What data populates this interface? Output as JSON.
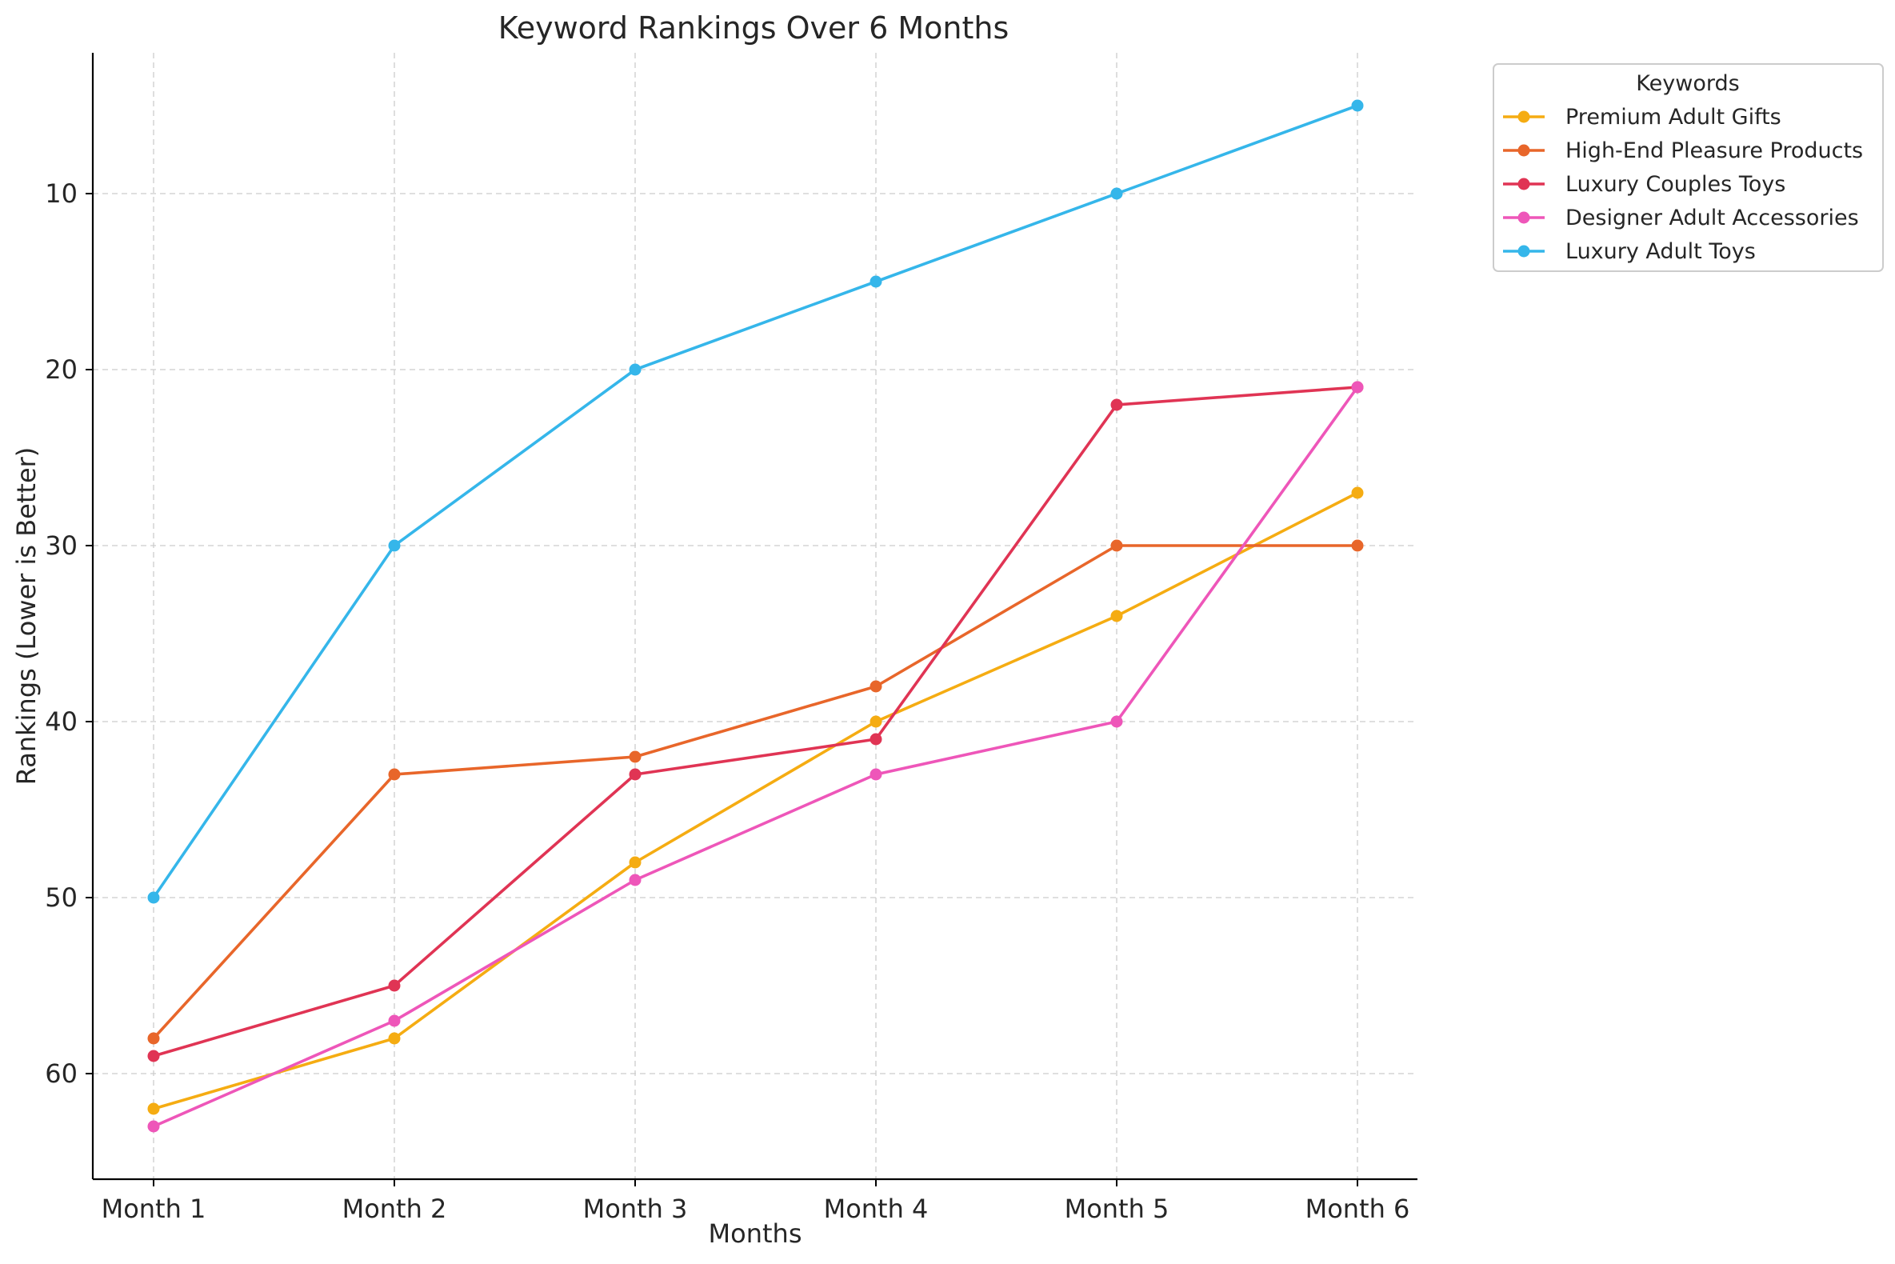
{
  "chart_data": {
    "type": "line",
    "title": "Keyword Rankings Over 6 Months",
    "xlabel": "Months",
    "ylabel": "Rankings (Lower is Better)",
    "categories": [
      "Month 1",
      "Month 2",
      "Month 3",
      "Month 4",
      "Month 5",
      "Month 6"
    ],
    "y_inverted": true,
    "ylim": [
      66,
      2
    ],
    "yticks": [
      10,
      20,
      30,
      40,
      50,
      60
    ],
    "grid": true,
    "legend": {
      "title": "Keywords",
      "placement": "outside-top-right"
    },
    "series": [
      {
        "name": "Premium Adult Gifts",
        "color": "#F5AC12",
        "values": [
          62,
          58,
          48,
          40,
          34,
          27
        ]
      },
      {
        "name": "High-End Pleasure Products",
        "color": "#E8662A",
        "values": [
          58,
          43,
          42,
          38,
          30,
          30
        ]
      },
      {
        "name": "Luxury Couples Toys",
        "color": "#E03454",
        "values": [
          59,
          55,
          43,
          41,
          22,
          21
        ]
      },
      {
        "name": "Designer Adult Accessories",
        "color": "#EE56B9",
        "values": [
          63,
          57,
          49,
          43,
          40,
          21
        ]
      },
      {
        "name": "Luxury Adult Toys",
        "color": "#35B6EA",
        "values": [
          50,
          30,
          20,
          15,
          10,
          5
        ]
      }
    ]
  }
}
